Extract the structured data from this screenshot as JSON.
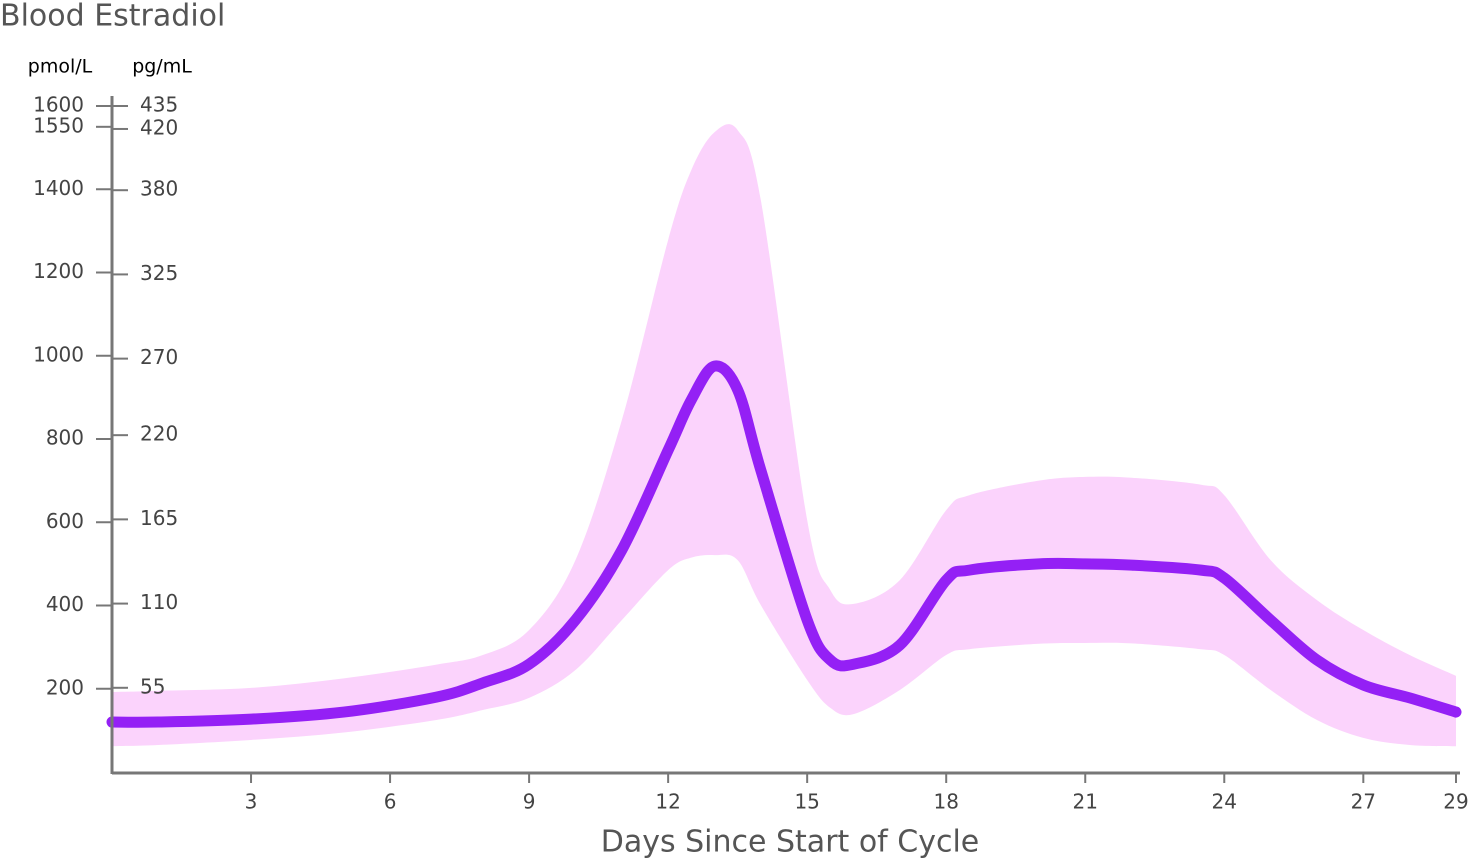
{
  "chart_data": {
    "type": "line",
    "title": "Blood Estradiol",
    "y_unit": "pmol/L",
    "y2_unit": "pg/mL",
    "x_label": "Days Since Start of Cycle",
    "x": [
      0,
      1,
      3,
      5,
      7,
      8,
      9,
      10,
      11,
      12,
      12.5,
      13,
      13.5,
      14,
      15,
      15.5,
      16,
      17,
      18,
      18.5,
      20,
      21,
      22,
      23.5,
      24,
      25,
      26,
      27,
      28,
      29
    ],
    "series": [
      {
        "color": "#9420f5",
        "values": [
          120,
          120,
          127,
          144,
          180,
          214,
          259,
          365,
          533,
          773,
          894,
          975,
          918,
          725,
          365,
          269,
          259,
          305,
          461,
          485,
          500,
          500,
          497,
          485,
          466,
          365,
          269,
          209,
          178,
          144
        ]
      }
    ],
    "band": {
      "color": "#fbd3fc",
      "upper": [
        192,
        195,
        202,
        225,
        258,
        281,
        341,
        509,
        845,
        1278,
        1446,
        1537,
        1542,
        1374,
        605,
        437,
        404,
        461,
        629,
        665,
        700,
        709,
        707,
        690,
        665,
        509,
        413,
        341,
        281,
        231
      ],
      "lower": [
        62,
        65,
        77,
        95,
        125,
        149,
        178,
        245,
        365,
        485,
        515,
        521,
        509,
        401,
        221,
        154,
        139,
        197,
        281,
        295,
        308,
        310,
        309,
        295,
        281,
        197,
        125,
        82,
        65,
        62
      ]
    },
    "xlim": [
      0,
      29
    ],
    "xticks": [
      3,
      6,
      9,
      12,
      15,
      18,
      21,
      24,
      27,
      29
    ],
    "ylim": [
      0,
      1600
    ],
    "yticks": [
      200,
      400,
      600,
      800,
      1000,
      1200,
      1400,
      1550,
      1600
    ],
    "y2lim": [
      0,
      435
    ],
    "y2ticks": [
      55,
      110,
      165,
      220,
      270,
      325,
      380,
      420,
      435
    ]
  }
}
